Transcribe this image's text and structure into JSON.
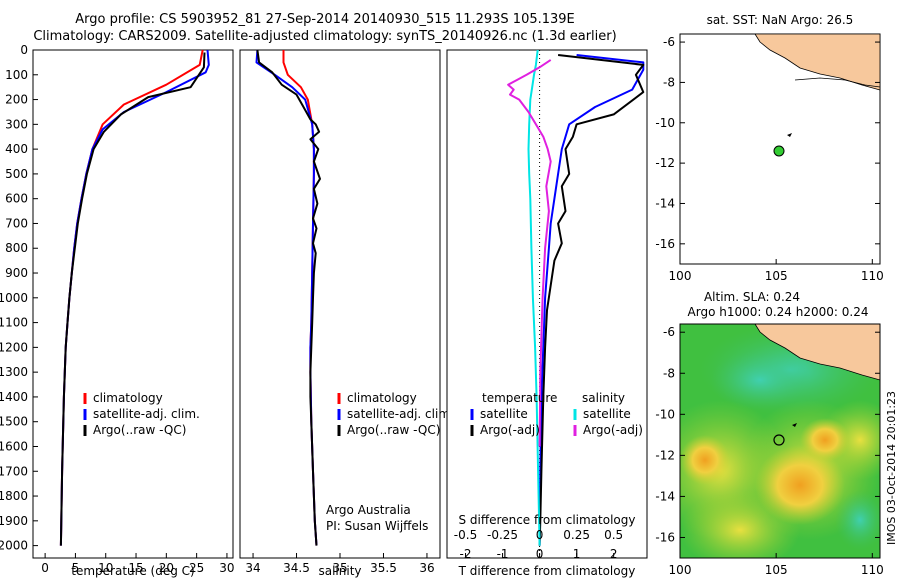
{
  "header": {
    "title_line1": "Argo profile: CS 5903952_81 27-Sep-2014 20140930_515 11.293S 105.139E",
    "title_line2": "Climatology: CARS2009. Satellite-adjusted climatology: synTS_20140926.nc (1.3d earlier)"
  },
  "depth_ticks": [
    "0",
    "100",
    "200",
    "300",
    "400",
    "500",
    "600",
    "700",
    "800",
    "900",
    "1000",
    "1100",
    "1200",
    "1300",
    "1400",
    "1500",
    "1600",
    "1700",
    "1800",
    "1900",
    "2000"
  ],
  "panels": {
    "temperature": {
      "xlabel": "temperature (deg C)",
      "xticks": [
        "0",
        "5",
        "10",
        "15",
        "20",
        "25",
        "30"
      ],
      "legend": [
        {
          "label": "climatology",
          "color": "#ff0000"
        },
        {
          "label": "satellite-adj. clim.",
          "color": "#0000ff"
        },
        {
          "label": "Argo(..raw -QC)",
          "color": "#000000"
        }
      ]
    },
    "salinity": {
      "xlabel": "salinity",
      "xticks": [
        "34",
        "34.5",
        "35",
        "35.5",
        "36"
      ],
      "legend": [
        {
          "label": "climatology",
          "color": "#ff0000"
        },
        {
          "label": "satellite-adj. clim.",
          "color": "#0000ff"
        },
        {
          "label": "Argo(..raw -QC)",
          "color": "#000000"
        }
      ],
      "annotation_line1": "Argo Australia",
      "annotation_line2": "PI: Susan Wijffels"
    },
    "difference": {
      "xlabel_bottom": "T difference from climatology",
      "xlabel_top": "S difference from climatology",
      "xticks_T": [
        "-2",
        "-1",
        "0",
        "1",
        "2"
      ],
      "xticks_S": [
        "-0.5",
        "-0.25",
        "0",
        "0.25",
        "0.5"
      ],
      "legend_left_title": "temperature",
      "legend_left": [
        {
          "label": "satellite",
          "color": "#0000ff"
        },
        {
          "label": "Argo(-adj)",
          "color": "#000000"
        }
      ],
      "legend_right_title": "salinity",
      "legend_right": [
        {
          "label": "satellite",
          "color": "#00e5e5"
        },
        {
          "label": "Argo(-adj)",
          "color": "#e020e0"
        }
      ]
    },
    "map_top": {
      "title": "sat. SST: NaN Argo: 26.5",
      "yticks": [
        "-6",
        "-8",
        "-10",
        "-12",
        "-14",
        "-16"
      ],
      "xticks": [
        "100",
        "105",
        "110"
      ]
    },
    "map_bottom": {
      "title_line1": "Altim. SLA: 0.24",
      "title_line2": "Argo h1000: 0.24 h2000: 0.24",
      "yticks": [
        "-6",
        "-8",
        "-10",
        "-12",
        "-14",
        "-16"
      ],
      "xticks": [
        "100",
        "105",
        "110"
      ],
      "side_label": "IMOS 03-Oct-2014 20:01:23"
    }
  },
  "chart_data": [
    {
      "type": "line",
      "title": "",
      "xlabel": "temperature (deg C)",
      "ylabel": "",
      "xlim": [
        -2,
        31
      ],
      "ylim": [
        2050,
        0
      ],
      "series": [
        {
          "name": "climatology",
          "color": "#ff0000",
          "x": [
            26.0,
            25.5,
            20.0,
            13.0,
            9.5,
            7.8,
            6.8,
            6.0,
            5.3,
            4.8,
            4.4,
            4.0,
            3.7,
            3.4,
            3.1,
            2.8,
            2.6
          ],
          "y": [
            0,
            60,
            140,
            220,
            300,
            400,
            500,
            600,
            700,
            800,
            900,
            1000,
            1100,
            1200,
            1400,
            1700,
            2000
          ]
        },
        {
          "name": "satellite-adj. clim.",
          "color": "#0000ff",
          "x": [
            26.8,
            27.0,
            26.5,
            20.0,
            13.0,
            9.5,
            7.8,
            6.8,
            6.0,
            5.3,
            4.8,
            4.4,
            4.0,
            3.7,
            3.4,
            3.1,
            2.8,
            2.6
          ],
          "y": [
            0,
            60,
            90,
            170,
            250,
            320,
            400,
            500,
            600,
            700,
            800,
            900,
            1000,
            1100,
            1200,
            1400,
            1700,
            2000
          ]
        },
        {
          "name": "Argo(..raw -QC)",
          "color": "#000000",
          "x": [
            26.3,
            26.2,
            24.0,
            17.0,
            12.5,
            9.7,
            8.0,
            6.9,
            6.1,
            5.4,
            4.9,
            4.4,
            4.0,
            3.7,
            3.4,
            3.1,
            2.8,
            2.6
          ],
          "y": [
            10,
            70,
            150,
            190,
            260,
            330,
            400,
            500,
            600,
            700,
            800,
            900,
            1000,
            1100,
            1200,
            1400,
            1700,
            2000
          ]
        }
      ]
    },
    {
      "type": "line",
      "title": "",
      "xlabel": "salinity",
      "ylabel": "",
      "xlim": [
        33.85,
        36.15
      ],
      "ylim": [
        2050,
        0
      ],
      "series": [
        {
          "name": "climatology",
          "color": "#ff0000",
          "x": [
            34.35,
            34.35,
            34.4,
            34.55,
            34.63,
            34.68,
            34.7,
            34.7,
            34.69,
            34.68,
            34.67,
            34.66,
            34.66,
            34.67,
            34.69,
            34.71,
            34.73
          ],
          "y": [
            0,
            50,
            100,
            150,
            200,
            300,
            400,
            500,
            700,
            900,
            1100,
            1200,
            1300,
            1500,
            1700,
            1900,
            2000
          ]
        },
        {
          "name": "satellite-adj. clim.",
          "color": "#0000ff",
          "x": [
            34.05,
            34.04,
            34.25,
            34.45,
            34.6,
            34.68,
            34.7,
            34.7,
            34.69,
            34.68,
            34.67,
            34.66,
            34.66,
            34.67,
            34.69,
            34.71,
            34.73
          ],
          "y": [
            0,
            50,
            100,
            150,
            200,
            300,
            400,
            500,
            700,
            900,
            1100,
            1200,
            1300,
            1500,
            1700,
            1900,
            2000
          ]
        },
        {
          "name": "Argo(..raw -QC)",
          "color": "#000000",
          "x": [
            34.05,
            34.07,
            34.22,
            34.33,
            34.5,
            34.58,
            34.66,
            34.72,
            34.76,
            34.66,
            34.75,
            34.7,
            34.77,
            34.7,
            34.74,
            34.69,
            34.73,
            34.69,
            34.72,
            34.7,
            34.69,
            34.68,
            34.67,
            34.66,
            34.66,
            34.67,
            34.69,
            34.71,
            34.73
          ],
          "y": [
            0,
            50,
            90,
            140,
            180,
            230,
            280,
            300,
            330,
            360,
            400,
            450,
            520,
            560,
            620,
            680,
            720,
            780,
            820,
            900,
            1000,
            1100,
            1200,
            1300,
            1400,
            1500,
            1700,
            1900,
            2000
          ]
        }
      ]
    },
    {
      "type": "line",
      "title": "",
      "xlabel": "T difference from climatology",
      "ylabel": "",
      "xlim": [
        -2.5,
        2.9
      ],
      "ylim": [
        2050,
        0
      ],
      "series": [
        {
          "name": "temperature satellite",
          "color": "#0000ff",
          "x": [
            1.0,
            2.8,
            2.8,
            2.5,
            1.5,
            0.8,
            0.6,
            0.5,
            0.4,
            0.3,
            0.25,
            0.2,
            0.15,
            0.1,
            0.05,
            0.02,
            0.0
          ],
          "y": [
            20,
            50,
            80,
            160,
            230,
            300,
            400,
            500,
            600,
            700,
            800,
            900,
            1000,
            1200,
            1400,
            1700,
            2000
          ]
        },
        {
          "name": "temperature Argo(-adj)",
          "color": "#000000",
          "x": [
            0.5,
            2.8,
            2.6,
            2.8,
            2.0,
            1.0,
            0.9,
            0.7,
            0.8,
            0.6,
            0.7,
            0.5,
            0.6,
            0.4,
            0.3,
            0.2,
            0.15,
            0.1,
            0.05,
            0.02,
            0.0
          ],
          "y": [
            20,
            60,
            100,
            170,
            260,
            300,
            350,
            400,
            500,
            550,
            650,
            700,
            780,
            850,
            950,
            1050,
            1200,
            1400,
            1700,
            1900,
            2000
          ]
        },
        {
          "name": "salinity satellite",
          "color": "#00e5e5",
          "x": [
            -0.05,
            -0.1,
            -0.15,
            -0.2,
            -0.25,
            -0.28,
            -0.3,
            -0.28,
            -0.25,
            -0.22,
            -0.18,
            -0.12,
            -0.08,
            -0.04,
            0.0
          ],
          "y": [
            0,
            60,
            100,
            150,
            200,
            300,
            400,
            500,
            600,
            800,
            1000,
            1200,
            1400,
            1700,
            2000
          ]
        },
        {
          "name": "salinity Argo(-adj)",
          "color": "#e020e0",
          "x": [
            0.3,
            0.0,
            -0.35,
            -0.6,
            -0.85,
            -0.7,
            -0.8,
            -0.55,
            -0.3,
            -0.1,
            0.1,
            0.22,
            0.3,
            0.18,
            0.25,
            0.15,
            0.08,
            0.02,
            0.0
          ],
          "y": [
            40,
            70,
            100,
            120,
            140,
            160,
            180,
            200,
            250,
            300,
            350,
            400,
            450,
            550,
            650,
            800,
            1000,
            1300,
            1600
          ]
        }
      ]
    }
  ],
  "colors": {
    "climatology": "#ff0000",
    "satellite": "#0000ff",
    "argo": "#000000",
    "s_satellite": "#00e5e5",
    "s_argo": "#e020e0",
    "land": "#f7c89c",
    "float_marker": "#33cc33"
  }
}
